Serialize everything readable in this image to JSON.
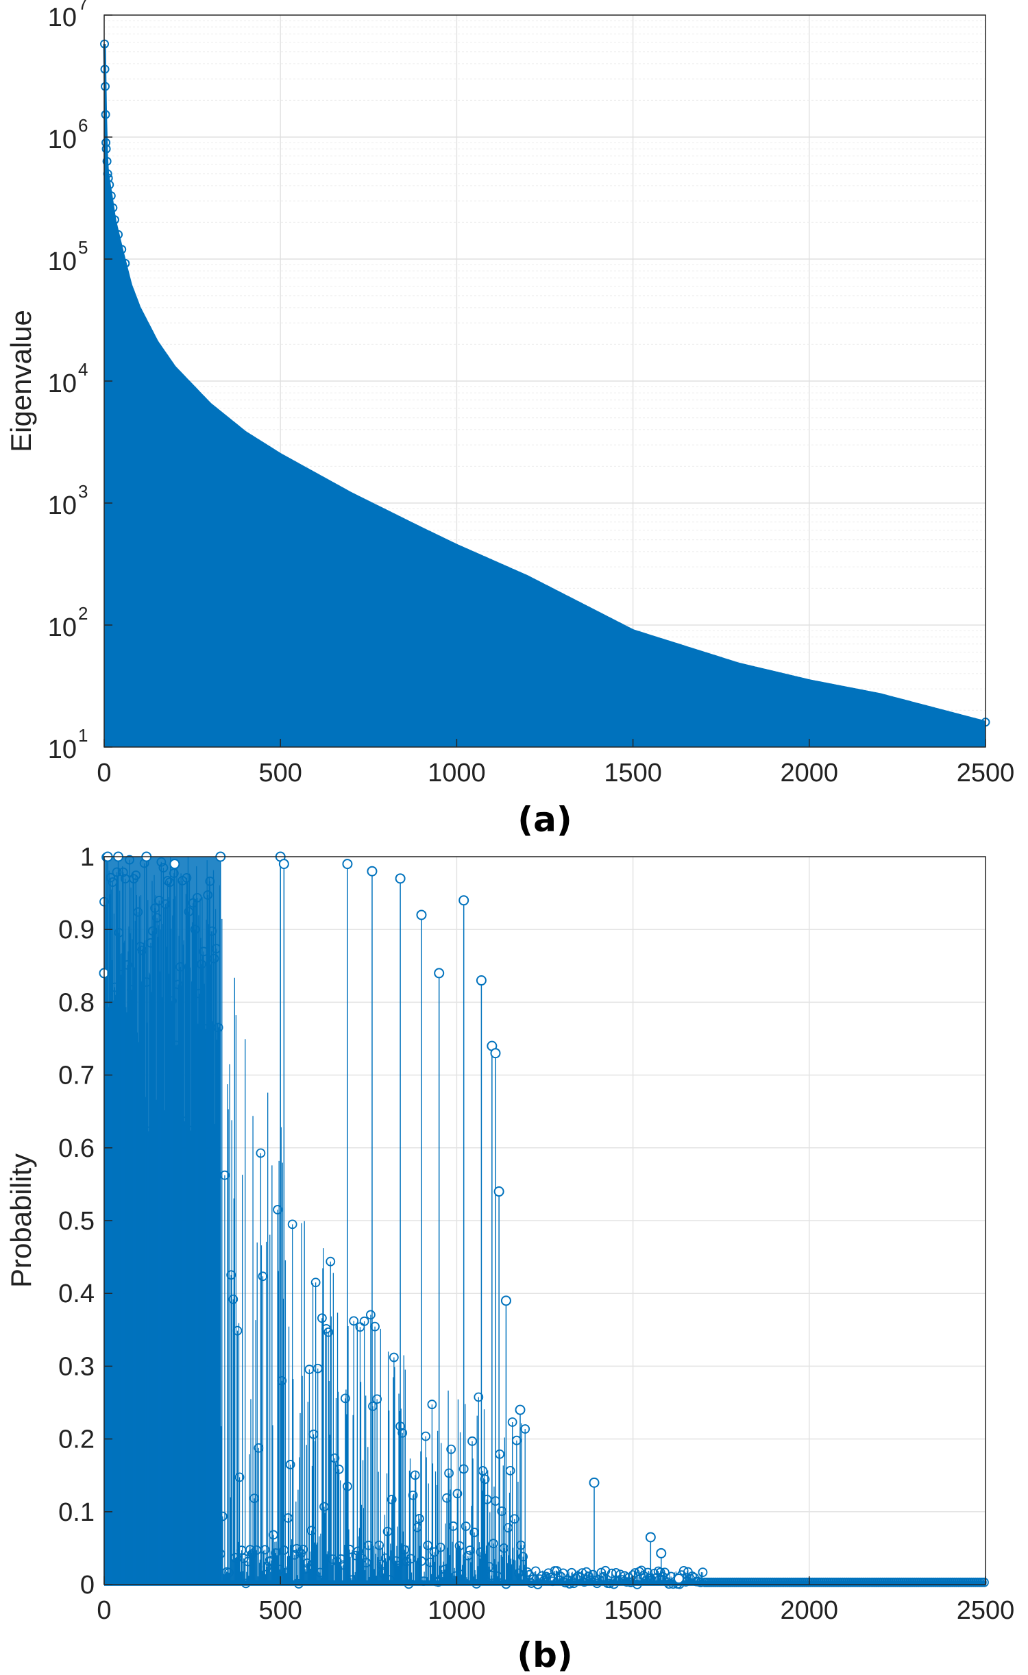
{
  "chart_data": [
    {
      "panel_label": "(a)",
      "type": "stem",
      "ylabel": "Eigenvalue",
      "xlabel": "",
      "yscale": "log",
      "xlim": [
        0,
        2500
      ],
      "ylim": [
        10,
        10000000
      ],
      "grid": true,
      "color": "#0072BD",
      "x_ticks": [
        "0",
        "500",
        "1000",
        "1500",
        "2000",
        "2500"
      ],
      "y_ticks": [
        {
          "base": "10",
          "exp": "1"
        },
        {
          "base": "10",
          "exp": "2"
        },
        {
          "base": "10",
          "exp": "3"
        },
        {
          "base": "10",
          "exp": "4"
        },
        {
          "base": "10",
          "exp": "5"
        },
        {
          "base": "10",
          "exp": "6"
        },
        {
          "base": "10",
          "exp": "7"
        }
      ],
      "envelope": {
        "x": [
          1,
          2,
          3,
          5,
          10,
          20,
          30,
          50,
          75,
          100,
          150,
          200,
          300,
          400,
          500,
          700,
          900,
          1000,
          1200,
          1500,
          1800,
          2000,
          2200,
          2500
        ],
        "y": [
          5800000,
          3600000,
          2600000,
          900000,
          500000,
          330000,
          210000,
          120000,
          62000,
          40000,
          21000,
          13000,
          6500,
          3800,
          2500,
          1200,
          620,
          450,
          250,
          90,
          48,
          35,
          27,
          16
        ]
      }
    },
    {
      "panel_label": "(b)",
      "type": "stem",
      "ylabel": "Probability",
      "xlabel": "",
      "xlim": [
        0,
        2500
      ],
      "ylim": [
        0,
        1
      ],
      "grid": true,
      "color": "#0072BD",
      "x_ticks": [
        "0",
        "500",
        "1000",
        "1500",
        "2000",
        "2500"
      ],
      "y_ticks": [
        "0",
        "0.1",
        "0.2",
        "0.3",
        "0.4",
        "0.5",
        "0.6",
        "0.7",
        "0.8",
        "0.9",
        "1"
      ],
      "highlights": {
        "x": [
          0,
          10,
          40,
          120,
          200,
          330,
          500,
          510,
          690,
          760,
          840,
          1020,
          1070,
          1100,
          1110,
          950,
          900,
          1120,
          1140,
          1180,
          1390,
          1550,
          1580,
          1630
        ],
        "y": [
          0.84,
          1.0,
          1.0,
          1.0,
          0.99,
          1.0,
          1.0,
          0.99,
          0.99,
          0.98,
          0.97,
          0.94,
          0.83,
          0.74,
          0.73,
          0.84,
          0.92,
          0.54,
          0.39,
          0.24,
          0.14,
          0.065,
          0.043,
          0.008
        ]
      }
    }
  ]
}
